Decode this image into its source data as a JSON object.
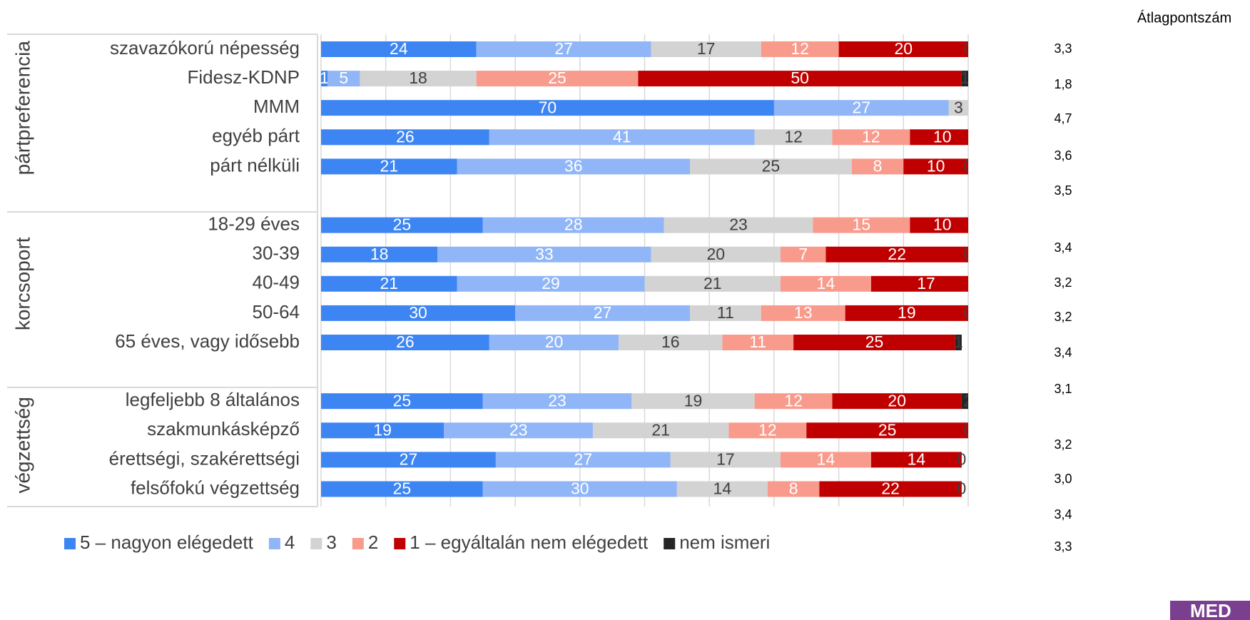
{
  "chart_data": {
    "type": "bar",
    "orientation": "horizontal",
    "stacked": true,
    "right_column_title": "Átlagpontszám",
    "groups": [
      {
        "name": "pártpreferencia",
        "rows": [
          0,
          4
        ]
      },
      {
        "name": "korcsoport",
        "rows": [
          6,
          10
        ]
      },
      {
        "name": "végzettség",
        "rows": [
          12,
          15
        ]
      }
    ],
    "categories": [
      "szavazókorú népesség",
      "Fidesz-KDNP",
      "MMM",
      "egyéb párt",
      "párt nélküli",
      null,
      "18-29 éves",
      "30-39",
      "40-49",
      "50-64",
      "65 éves, vagy idősebb",
      null,
      "legfeljebb 8 általános",
      "szakmunkásképző",
      "érettségi, szakérettségi",
      "felsőfokú végzettség"
    ],
    "series": [
      {
        "name": "5 – nagyon elégedett",
        "color": "#3d85f2",
        "label_color": "#ffffff",
        "values": [
          24,
          1,
          70,
          26,
          21,
          null,
          25,
          18,
          21,
          30,
          26,
          null,
          25,
          19,
          27,
          25
        ]
      },
      {
        "name": "4",
        "color": "#90b6f7",
        "label_color": "#ffffff",
        "values": [
          27,
          5,
          27,
          41,
          36,
          null,
          28,
          33,
          29,
          27,
          20,
          null,
          23,
          23,
          27,
          30
        ]
      },
      {
        "name": "3",
        "color": "#d3d3d3",
        "label_color": "#404040",
        "values": [
          17,
          18,
          3,
          12,
          25,
          null,
          23,
          20,
          21,
          11,
          16,
          null,
          19,
          21,
          17,
          14
        ]
      },
      {
        "name": "2",
        "color": "#f99b8c",
        "label_color": "#ffffff",
        "values": [
          12,
          25,
          null,
          12,
          8,
          null,
          15,
          7,
          14,
          13,
          11,
          null,
          12,
          12,
          14,
          8
        ]
      },
      {
        "name": "1 – egyáltalán nem elégedett",
        "color": "#c00000",
        "label_color": "#ffffff",
        "values": [
          20,
          50,
          null,
          10,
          10,
          null,
          10,
          22,
          17,
          19,
          25,
          null,
          20,
          25,
          14,
          22
        ]
      },
      {
        "name": "nem ismeri",
        "color": "#262626",
        "label_color": "#404040",
        "values": [
          0,
          1,
          null,
          0,
          0,
          null,
          0,
          0,
          0,
          0,
          1,
          null,
          2,
          0,
          0,
          0
        ]
      }
    ],
    "xlim": [
      0,
      100
    ],
    "xticks": [
      0,
      10,
      20,
      30,
      40,
      50,
      60,
      70,
      80,
      90,
      100
    ],
    "grid": true,
    "averages": [
      {
        "value": 3.3,
        "label": "3,3"
      },
      {
        "value": 1.8,
        "label": "1,8"
      },
      {
        "value": 4.7,
        "label": "4,7"
      },
      {
        "value": 3.6,
        "label": "3,6"
      },
      {
        "value": 3.5,
        "label": "3,5"
      },
      {
        "value": 3.4,
        "label": "3,4"
      },
      {
        "value": 3.2,
        "label": "3,2"
      },
      {
        "value": 3.2,
        "label": "3,2"
      },
      {
        "value": 3.4,
        "label": "3,4"
      },
      {
        "value": 3.1,
        "label": "3,1"
      },
      {
        "value": 3.2,
        "label": "3,2"
      },
      {
        "value": 3.0,
        "label": "3,0"
      },
      {
        "value": 3.4,
        "label": "3,4"
      },
      {
        "value": 3.3,
        "label": "3,3"
      }
    ],
    "logo": "MED"
  }
}
